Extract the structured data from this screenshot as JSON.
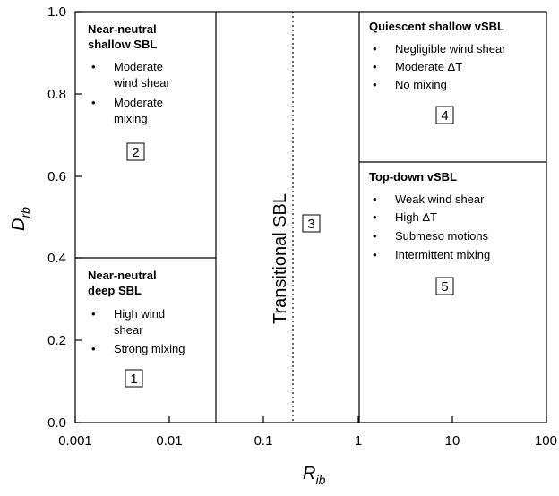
{
  "axes": {
    "x_label_main": "R",
    "x_label_sub": "ib",
    "y_label_main": "D",
    "y_label_sub": "rb",
    "x_ticks": [
      "0.001",
      "0.01",
      "0.1",
      "1",
      "10",
      "100"
    ],
    "y_ticks": [
      "0.0",
      "0.2",
      "0.4",
      "0.6",
      "0.8",
      "1.0"
    ]
  },
  "regions": {
    "r1": {
      "title_lines": [
        "Near-neutral",
        "deep SBL"
      ],
      "bullets": [
        [
          "High wind",
          "shear"
        ],
        [
          "Strong mixing"
        ]
      ],
      "number": "1"
    },
    "r2": {
      "title_lines": [
        "Near-neutral",
        "shallow SBL"
      ],
      "bullets": [
        [
          "Moderate",
          "wind shear"
        ],
        [
          "Moderate",
          "mixing"
        ]
      ],
      "number": "2"
    },
    "r3": {
      "label": "Transitional SBL",
      "number": "3"
    },
    "r4": {
      "title_lines": [
        "Quiescent shallow vSBL"
      ],
      "bullets": [
        [
          "Negligible wind shear"
        ],
        [
          "Moderate ΔT"
        ],
        [
          "No mixing"
        ]
      ],
      "number": "4"
    },
    "r5": {
      "title_lines": [
        "Top-down vSBL"
      ],
      "bullets": [
        [
          "Weak wind shear"
        ],
        [
          "High ΔT"
        ],
        [
          "Submeso motions"
        ],
        [
          "Intermittent mixing"
        ]
      ],
      "number": "5"
    }
  },
  "bullet_glyph": "•"
}
